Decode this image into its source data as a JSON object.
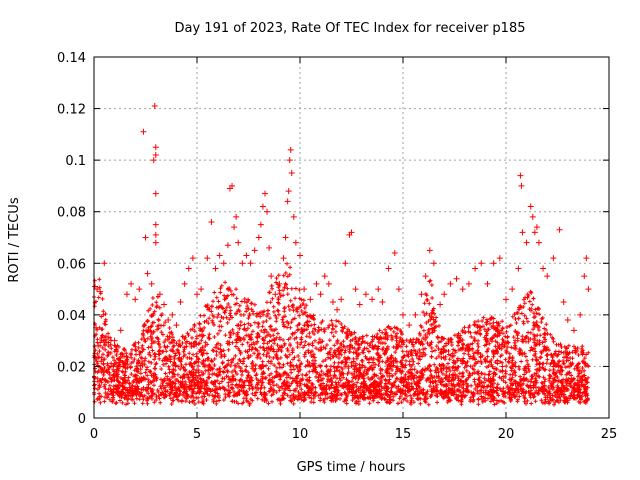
{
  "chart_data": {
    "type": "scatter",
    "title": "Day 191 of 2023, Rate Of TEC Index for receiver p185",
    "xlabel": "GPS time / hours",
    "ylabel": "ROTI / TECUs",
    "xlim": [
      0,
      25
    ],
    "ylim": [
      0,
      0.14
    ],
    "xticks": [
      0,
      5,
      10,
      15,
      20,
      25
    ],
    "xtick_labels": [
      "0",
      "5",
      "10",
      "15",
      "20",
      "25"
    ],
    "yticks": [
      0,
      0.02,
      0.04,
      0.06,
      0.08,
      0.1,
      0.12,
      0.14
    ],
    "ytick_labels": [
      "0",
      "0.02",
      "0.04",
      "0.06",
      "0.08",
      "0.1",
      "0.12",
      "0.14"
    ],
    "grid": true,
    "marker": "+",
    "color": "#ff0000",
    "series": [
      {
        "points": [
          [
            0.05,
            0.051
          ],
          [
            0.15,
            0.05
          ],
          [
            0.3,
            0.049
          ],
          [
            0.5,
            0.06
          ],
          [
            0.1,
            0.035
          ],
          [
            0.2,
            0.028
          ],
          [
            0.35,
            0.022
          ],
          [
            0.45,
            0.018
          ],
          [
            1.0,
            0.03
          ],
          [
            1.3,
            0.034
          ],
          [
            1.6,
            0.048
          ],
          [
            1.8,
            0.052
          ],
          [
            2.0,
            0.046
          ],
          [
            2.2,
            0.05
          ],
          [
            2.4,
            0.111
          ],
          [
            2.5,
            0.07
          ],
          [
            2.6,
            0.056
          ],
          [
            2.8,
            0.052
          ],
          [
            2.9,
            0.1
          ],
          [
            2.95,
            0.121
          ],
          [
            3.0,
            0.105
          ],
          [
            3.0,
            0.102
          ],
          [
            3.0,
            0.087
          ],
          [
            3.0,
            0.075
          ],
          [
            3.0,
            0.071
          ],
          [
            3.0,
            0.068
          ],
          [
            3.2,
            0.048
          ],
          [
            3.4,
            0.044
          ],
          [
            3.6,
            0.038
          ],
          [
            3.8,
            0.04
          ],
          [
            4.0,
            0.036
          ],
          [
            4.2,
            0.045
          ],
          [
            4.4,
            0.052
          ],
          [
            4.6,
            0.058
          ],
          [
            4.8,
            0.062
          ],
          [
            5.0,
            0.048
          ],
          [
            5.2,
            0.05
          ],
          [
            5.5,
            0.062
          ],
          [
            5.7,
            0.076
          ],
          [
            5.9,
            0.058
          ],
          [
            6.1,
            0.063
          ],
          [
            6.3,
            0.06
          ],
          [
            6.5,
            0.067
          ],
          [
            6.6,
            0.089
          ],
          [
            6.7,
            0.09
          ],
          [
            6.8,
            0.074
          ],
          [
            6.9,
            0.078
          ],
          [
            7.0,
            0.068
          ],
          [
            7.2,
            0.06
          ],
          [
            7.4,
            0.063
          ],
          [
            7.6,
            0.06
          ],
          [
            7.8,
            0.065
          ],
          [
            8.0,
            0.07
          ],
          [
            8.1,
            0.075
          ],
          [
            8.2,
            0.082
          ],
          [
            8.3,
            0.087
          ],
          [
            8.4,
            0.08
          ],
          [
            8.5,
            0.066
          ],
          [
            8.6,
            0.055
          ],
          [
            8.8,
            0.048
          ],
          [
            9.0,
            0.052
          ],
          [
            9.2,
            0.062
          ],
          [
            9.3,
            0.07
          ],
          [
            9.4,
            0.084
          ],
          [
            9.45,
            0.088
          ],
          [
            9.5,
            0.1
          ],
          [
            9.55,
            0.104
          ],
          [
            9.6,
            0.095
          ],
          [
            9.7,
            0.078
          ],
          [
            9.8,
            0.068
          ],
          [
            10.0,
            0.063
          ],
          [
            10.2,
            0.05
          ],
          [
            10.5,
            0.046
          ],
          [
            10.8,
            0.052
          ],
          [
            11.0,
            0.048
          ],
          [
            11.2,
            0.055
          ],
          [
            11.4,
            0.052
          ],
          [
            11.6,
            0.045
          ],
          [
            11.8,
            0.042
          ],
          [
            12.0,
            0.046
          ],
          [
            12.2,
            0.06
          ],
          [
            12.4,
            0.071
          ],
          [
            12.5,
            0.072
          ],
          [
            12.7,
            0.05
          ],
          [
            12.9,
            0.044
          ],
          [
            13.2,
            0.048
          ],
          [
            13.5,
            0.046
          ],
          [
            13.8,
            0.05
          ],
          [
            14.0,
            0.045
          ],
          [
            14.3,
            0.058
          ],
          [
            14.6,
            0.064
          ],
          [
            14.8,
            0.05
          ],
          [
            15.0,
            0.04
          ],
          [
            15.3,
            0.036
          ],
          [
            15.6,
            0.04
          ],
          [
            15.9,
            0.048
          ],
          [
            16.1,
            0.055
          ],
          [
            16.3,
            0.065
          ],
          [
            16.5,
            0.06
          ],
          [
            16.8,
            0.044
          ],
          [
            17.0,
            0.048
          ],
          [
            17.3,
            0.052
          ],
          [
            17.6,
            0.054
          ],
          [
            17.9,
            0.05
          ],
          [
            18.2,
            0.052
          ],
          [
            18.5,
            0.058
          ],
          [
            18.8,
            0.06
          ],
          [
            19.1,
            0.052
          ],
          [
            19.4,
            0.06
          ],
          [
            19.7,
            0.062
          ],
          [
            20.0,
            0.046
          ],
          [
            20.3,
            0.05
          ],
          [
            20.6,
            0.058
          ],
          [
            20.7,
            0.094
          ],
          [
            20.75,
            0.09
          ],
          [
            20.8,
            0.072
          ],
          [
            21.0,
            0.068
          ],
          [
            21.2,
            0.082
          ],
          [
            21.3,
            0.078
          ],
          [
            21.4,
            0.072
          ],
          [
            21.5,
            0.074
          ],
          [
            21.6,
            0.068
          ],
          [
            21.8,
            0.058
          ],
          [
            22.0,
            0.055
          ],
          [
            22.3,
            0.062
          ],
          [
            22.6,
            0.073
          ],
          [
            22.8,
            0.045
          ],
          [
            23.0,
            0.038
          ],
          [
            23.3,
            0.034
          ],
          [
            23.6,
            0.04
          ],
          [
            23.8,
            0.055
          ],
          [
            23.9,
            0.062
          ],
          [
            24.0,
            0.05
          ]
        ]
      }
    ]
  }
}
